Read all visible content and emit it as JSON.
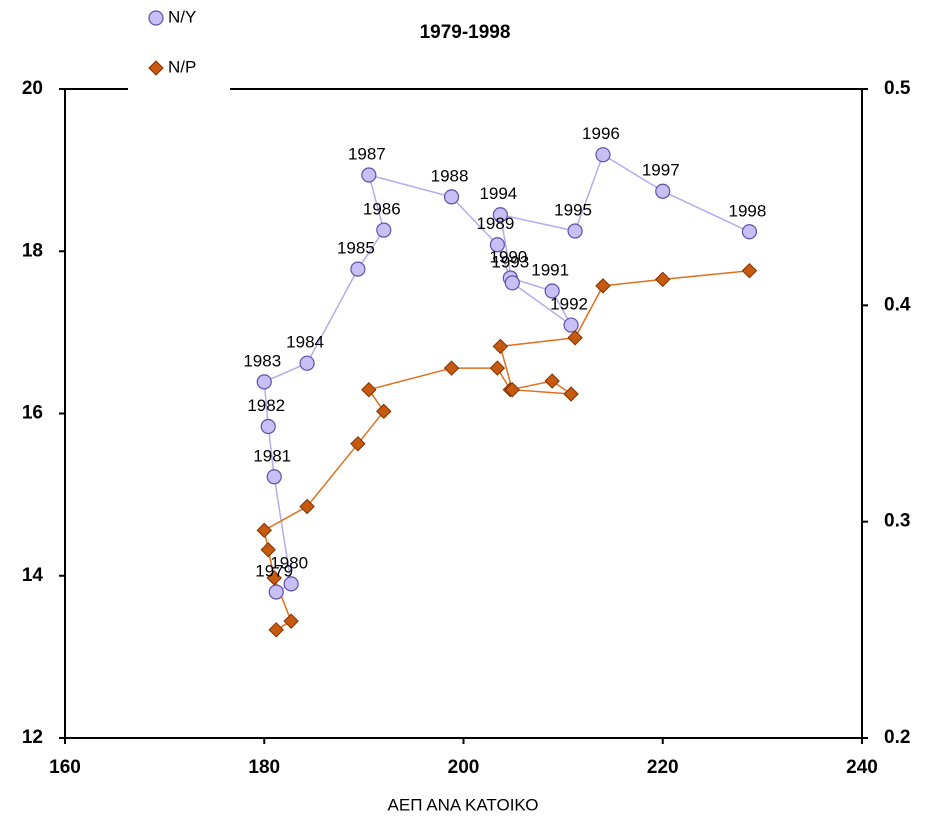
{
  "chart_data": {
    "type": "scatter-line",
    "title": "1979-1998",
    "x_label": "ΑΕΠ ΑΝΑ ΚΑΤΟΙΚΟ",
    "x": [
      181.2,
      182.7,
      181.0,
      180.4,
      180.0,
      184.3,
      189.4,
      192.0,
      190.5,
      198.8,
      203.4,
      204.7,
      208.9,
      210.8,
      204.9,
      203.7,
      211.2,
      214.0,
      220.0,
      228.7
    ],
    "point_labels": [
      "1979",
      "1980",
      "1981",
      "1982",
      "1983",
      "1984",
      "1985",
      "1986",
      "1987",
      "1988",
      "1989",
      "1990",
      "1991",
      "1992",
      "1993",
      "1994",
      "1995",
      "1996",
      "1997",
      "1998"
    ],
    "series": [
      {
        "name": "N/Y",
        "color": "#c8c0f4",
        "line_color": "#b4acec",
        "marker": "circle",
        "axis": "y",
        "values": [
          13.8,
          13.9,
          15.22,
          15.84,
          16.39,
          16.62,
          17.78,
          18.26,
          18.94,
          18.67,
          18.08,
          17.67,
          17.51,
          17.09,
          17.61,
          18.45,
          18.25,
          19.19,
          18.74,
          18.24
        ]
      },
      {
        "name": "N/P",
        "color": "#c85a10",
        "line_color": "#e07020",
        "marker": "diamond",
        "axis": "y2",
        "values": [
          0.25,
          0.254,
          0.274,
          0.287,
          0.296,
          0.307,
          0.336,
          0.351,
          0.361,
          0.371,
          0.371,
          0.361,
          0.365,
          0.359,
          0.361,
          0.381,
          0.385,
          0.409,
          0.412,
          0.416
        ]
      }
    ],
    "xlim": [
      160,
      240
    ],
    "xticks": [
      160,
      180,
      200,
      220,
      240
    ],
    "ylim": [
      12,
      20
    ],
    "yticks": [
      12,
      14,
      16,
      18,
      20
    ],
    "y2lim": [
      0.2,
      0.5
    ],
    "y2ticks": [
      0.2,
      0.3,
      0.4,
      0.5
    ],
    "grid": false,
    "legend": "top-left"
  }
}
